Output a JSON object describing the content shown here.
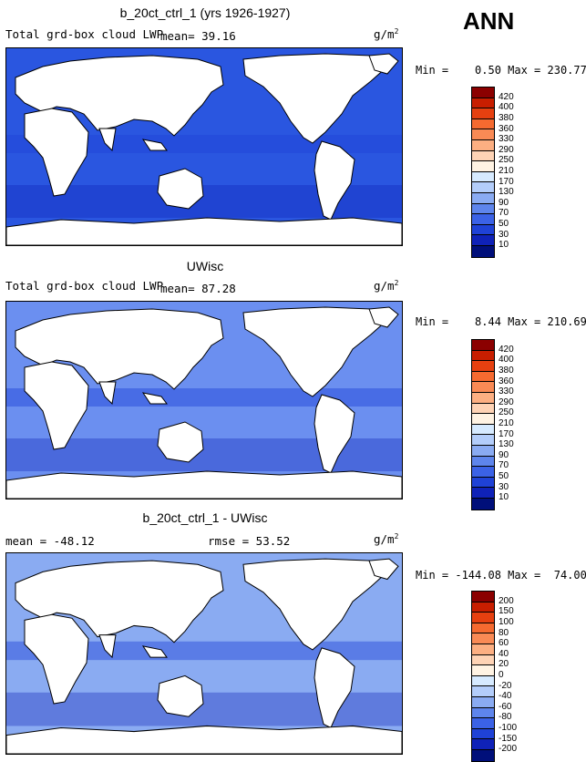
{
  "season": "ANN",
  "panels": [
    {
      "title": "b_20ct_ctrl_1 (yrs 1926-1927)",
      "left_label": "Total grd-box cloud LWP",
      "mean_text": "mean=  39.16",
      "rmse_text": "",
      "units": "g/m",
      "units_exp": "2",
      "minmax": "Min =    0.50 Max = 230.77",
      "ocean_fill": "#2a56e0",
      "colorbar": {
        "labels": [
          "420",
          "400",
          "380",
          "360",
          "330",
          "290",
          "250",
          "210",
          "170",
          "130",
          "90",
          "70",
          "50",
          "30",
          "10"
        ],
        "colors": [
          "#8b0000",
          "#c81e00",
          "#e64010",
          "#f56a30",
          "#f98a55",
          "#fcaf82",
          "#fed3b5",
          "#fff3e3",
          "#d6eaff",
          "#b3cdfa",
          "#8aabf2",
          "#5e85ec",
          "#3b62e6",
          "#1f42d6",
          "#0f22b8",
          "#000f7a"
        ]
      }
    },
    {
      "title": "UWisc",
      "left_label": "Total grd-box cloud LWP",
      "mean_text": "mean=  87.28",
      "rmse_text": "",
      "units": "g/m",
      "units_exp": "2",
      "minmax": "Min =    8.44 Max = 210.69",
      "ocean_fill": "#6b8ff0",
      "colorbar": {
        "labels": [
          "420",
          "400",
          "380",
          "360",
          "330",
          "290",
          "250",
          "210",
          "170",
          "130",
          "90",
          "70",
          "50",
          "30",
          "10"
        ],
        "colors": [
          "#8b0000",
          "#c81e00",
          "#e64010",
          "#f56a30",
          "#f98a55",
          "#fcaf82",
          "#fed3b5",
          "#fff3e3",
          "#d6eaff",
          "#b3cdfa",
          "#8aabf2",
          "#5e85ec",
          "#3b62e6",
          "#1f42d6",
          "#0f22b8",
          "#000f7a"
        ]
      }
    },
    {
      "title": "b_20ct_ctrl_1 - UWisc",
      "left_label": "",
      "mean_text": "mean = -48.12",
      "rmse_text": "rmse =  53.52",
      "units": "g/m",
      "units_exp": "2",
      "minmax": "Min = -144.08 Max =  74.00",
      "ocean_fill": "#8aabf2",
      "colorbar": {
        "labels": [
          "200",
          "150",
          "100",
          "80",
          "60",
          "40",
          "20",
          "0",
          "-20",
          "-40",
          "-60",
          "-80",
          "-100",
          "-150",
          "-200"
        ],
        "colors": [
          "#8b0000",
          "#c81e00",
          "#e64010",
          "#f56a30",
          "#f98a55",
          "#fcaf82",
          "#fed3b5",
          "#fff3e3",
          "#d6eaff",
          "#b3cdfa",
          "#8aabf2",
          "#5e85ec",
          "#3b62e6",
          "#1f42d6",
          "#0f22b8",
          "#000f7a"
        ]
      }
    }
  ]
}
